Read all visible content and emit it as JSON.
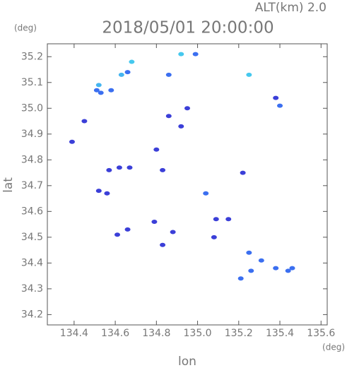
{
  "chart_data": {
    "type": "scatter",
    "title": "2018/05/01 20:00:00",
    "subtitle": "ALT(km) 2.0",
    "x_label": "lon",
    "y_label": "lat",
    "x_unit": "(deg)",
    "y_unit": "(deg)",
    "xlim": [
      134.27,
      135.63
    ],
    "ylim": [
      34.16,
      35.25
    ],
    "xticks": [
      134.4,
      134.6,
      134.8,
      {
        "value": 135,
        "label": "135.0"
      },
      135.2,
      135.4,
      135.6
    ],
    "yticks": [
      34.2,
      34.3,
      34.4,
      34.5,
      34.6,
      34.7,
      34.8,
      34.9,
      {
        "value": 35,
        "label": "35.0"
      },
      35.1,
      35.2
    ],
    "x": [
      134.51,
      134.52,
      134.53,
      134.68,
      134.66,
      134.63,
      134.92,
      134.99,
      134.86,
      134.58,
      134.86,
      134.92,
      134.95,
      134.39,
      134.45,
      134.8,
      134.57,
      134.62,
      134.67,
      134.83,
      135.04,
      134.52,
      134.56,
      135.09,
      135.15,
      134.79,
      134.88,
      134.66,
      134.61,
      134.83,
      135.08,
      135.25,
      135.31,
      135.26,
      135.21,
      135.38,
      135.44,
      135.46,
      135.25,
      135.38,
      135.4,
      135.22
    ],
    "y": [
      35.07,
      35.09,
      35.06,
      35.18,
      35.14,
      35.13,
      35.21,
      35.21,
      35.13,
      35.07,
      34.97,
      34.93,
      35.0,
      34.87,
      34.95,
      34.84,
      34.76,
      34.77,
      34.77,
      34.76,
      34.67,
      34.68,
      34.67,
      34.57,
      34.57,
      34.56,
      34.52,
      34.53,
      34.51,
      34.47,
      34.5,
      34.44,
      34.41,
      34.37,
      34.34,
      34.38,
      34.37,
      34.38,
      35.13,
      35.04,
      35.01,
      34.75
    ],
    "colors": [
      "#3b6ff0",
      "#45b5f0",
      "#3b6ff0",
      "#45c8ee",
      "#3b6ff0",
      "#45b5f0",
      "#45c8ee",
      "#3b6ff0",
      "#3b6ff0",
      "#3b6ff0",
      "#3b3fd8",
      "#3b3fd8",
      "#3b3fd8",
      "#3b3fd8",
      "#3b3fd8",
      "#3b3fd8",
      "#3b3fd8",
      "#3b3fd8",
      "#3b3fd8",
      "#3b3fd8",
      "#3b6ff0",
      "#3b3fd8",
      "#3b3fd8",
      "#3b3fd8",
      "#3b3fd8",
      "#3b3fd8",
      "#3b3fd8",
      "#3b3fd8",
      "#3b3fd8",
      "#3b3fd8",
      "#3b3fd8",
      "#3b6ff0",
      "#3b6ff0",
      "#3b6ff0",
      "#3b6ff0",
      "#3b6ff0",
      "#3b6ff0",
      "#3b6ff0",
      "#45c8ee",
      "#3b3fd8",
      "#3b6ff0",
      "#3b3fd8"
    ]
  }
}
